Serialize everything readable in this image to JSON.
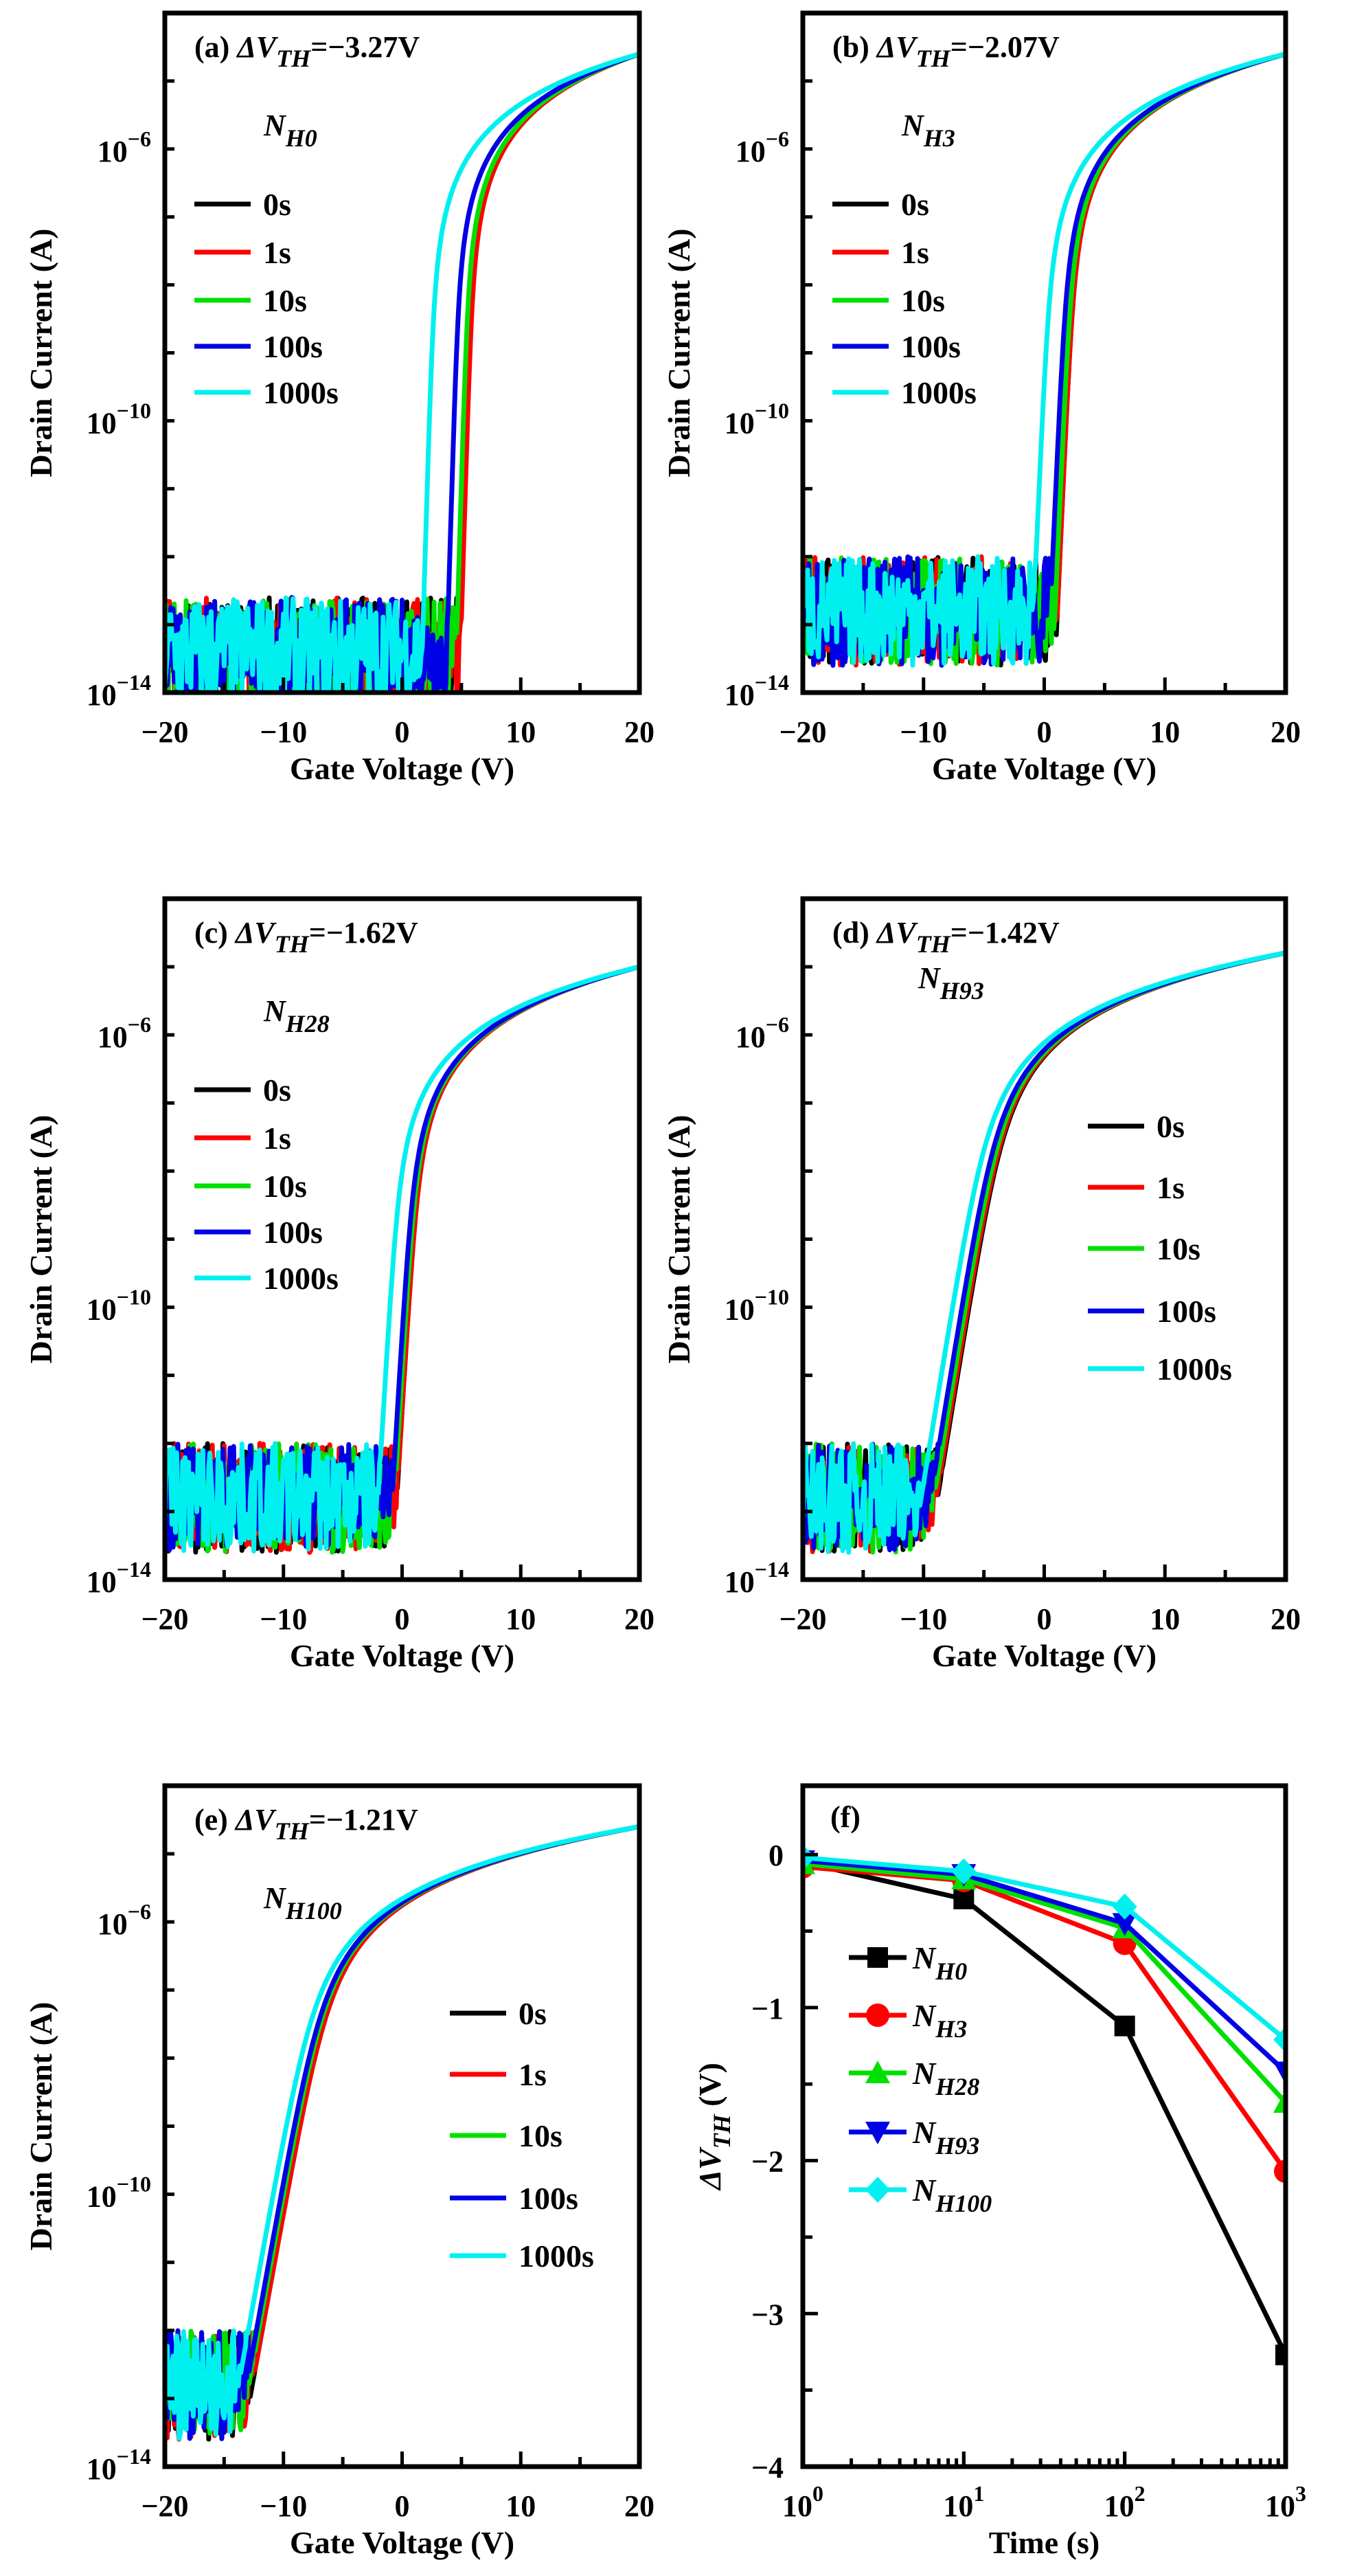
{
  "chart_data": [
    {
      "type": "line",
      "panel": "(a)",
      "delta_label": "ΔV",
      "delta_sub": "TH",
      "delta_value": "=−3.27V",
      "nh_main": "N",
      "nh_sub": "H0",
      "xlabel": "Gate Voltage (V)",
      "ylabel": "Drain Current (A)",
      "xlim": [
        -20,
        20
      ],
      "ylim": [
        1e-14,
        0.0001
      ],
      "yscale": "log",
      "xticks": [
        "−20",
        "−10",
        "0",
        "10",
        "20"
      ],
      "yticks": [
        {
          "base": "10",
          "exp": "−14"
        },
        {
          "base": "10",
          "exp": "−10"
        },
        {
          "base": "10",
          "exp": "−6"
        }
      ],
      "legend_position": "top-left",
      "floor_log": -13.4,
      "imax": 2.5e-05,
      "swing": 0.15,
      "series": [
        {
          "name": "0s",
          "color": "#000000",
          "von": 5.6
        },
        {
          "name": "1s",
          "color": "#ff0000",
          "von": 5.75
        },
        {
          "name": "10s",
          "color": "#00e000",
          "von": 5.4
        },
        {
          "name": "100s",
          "color": "#0000e6",
          "von": 4.6
        },
        {
          "name": "1000s",
          "color": "#00f0f0",
          "von": 2.5
        }
      ]
    },
    {
      "type": "line",
      "panel": "(b)",
      "delta_label": "ΔV",
      "delta_sub": "TH",
      "delta_value": "=−2.07V",
      "nh_main": "N",
      "nh_sub": "H3",
      "xlabel": "Gate Voltage (V)",
      "ylabel": "Drain Current (A)",
      "xlim": [
        -20,
        20
      ],
      "ylim": [
        1e-14,
        0.0001
      ],
      "yscale": "log",
      "xticks": [
        "−20",
        "−10",
        "0",
        "10",
        "20"
      ],
      "yticks": [
        {
          "base": "10",
          "exp": "−14"
        },
        {
          "base": "10",
          "exp": "−10"
        },
        {
          "base": "10",
          "exp": "−6"
        }
      ],
      "legend_position": "top-left",
      "floor_log": -12.8,
      "imax": 2.5e-05,
      "swing": 0.22,
      "series": [
        {
          "name": "0s",
          "color": "#000000",
          "von": 2.2
        },
        {
          "name": "1s",
          "color": "#ff0000",
          "von": 2.2
        },
        {
          "name": "10s",
          "color": "#00e000",
          "von": 2.0
        },
        {
          "name": "100s",
          "color": "#0000e6",
          "von": 1.6
        },
        {
          "name": "1000s",
          "color": "#00f0f0",
          "von": 0.2
        }
      ]
    },
    {
      "type": "line",
      "panel": "(c)",
      "delta_label": "ΔV",
      "delta_sub": "TH",
      "delta_value": "=−1.62V",
      "nh_main": "N",
      "nh_sub": "H28",
      "xlabel": "Gate Voltage (V)",
      "ylabel": "Drain Current (A)",
      "xlim": [
        -20,
        20
      ],
      "ylim": [
        1e-14,
        0.0001
      ],
      "yscale": "log",
      "xticks": [
        "−20",
        "−10",
        "0",
        "10",
        "20"
      ],
      "yticks": [
        {
          "base": "10",
          "exp": "−14"
        },
        {
          "base": "10",
          "exp": "−10"
        },
        {
          "base": "10",
          "exp": "−6"
        }
      ],
      "legend_position": "top-left",
      "floor_log": -12.8,
      "imax": 1e-05,
      "swing": 0.3,
      "series": [
        {
          "name": "0s",
          "color": "#000000",
          "von": 1.0
        },
        {
          "name": "1s",
          "color": "#ff0000",
          "von": 1.0
        },
        {
          "name": "10s",
          "color": "#00e000",
          "von": 0.8
        },
        {
          "name": "100s",
          "color": "#0000e6",
          "von": 0.6
        },
        {
          "name": "1000s",
          "color": "#00f0f0",
          "von": -0.6
        }
      ]
    },
    {
      "type": "line",
      "panel": "(d)",
      "delta_label": "ΔV",
      "delta_sub": "TH",
      "delta_value": "=−1.42V",
      "nh_main": "N",
      "nh_sub": "H93",
      "xlabel": "Gate Voltage (V)",
      "ylabel": "Drain Current (A)",
      "xlim": [
        -20,
        20
      ],
      "ylim": [
        1e-14,
        0.0001
      ],
      "yscale": "log",
      "xticks": [
        "−20",
        "−10",
        "0",
        "10",
        "20"
      ],
      "yticks": [
        {
          "base": "10",
          "exp": "−14"
        },
        {
          "base": "10",
          "exp": "−10"
        },
        {
          "base": "10",
          "exp": "−6"
        }
      ],
      "legend_position": "center-right",
      "floor_log": -12.8,
      "imax": 1.6e-05,
      "swing": 0.8,
      "series": [
        {
          "name": "0s",
          "color": "#000000",
          "von": -4.2
        },
        {
          "name": "1s",
          "color": "#ff0000",
          "von": -4.3
        },
        {
          "name": "10s",
          "color": "#00e000",
          "von": -4.5
        },
        {
          "name": "100s",
          "color": "#0000e6",
          "von": -4.8
        },
        {
          "name": "1000s",
          "color": "#00f0f0",
          "von": -5.6
        }
      ]
    },
    {
      "type": "line",
      "panel": "(e)",
      "delta_label": "ΔV",
      "delta_sub": "TH",
      "delta_value": "=−1.21V",
      "nh_main": "N",
      "nh_sub": "H100",
      "xlabel": "Gate Voltage (V)",
      "ylabel": "Drain Current (A)",
      "xlim": [
        -20,
        20
      ],
      "ylim": [
        1e-14,
        0.0001
      ],
      "yscale": "log",
      "xticks": [
        "−20",
        "−10",
        "0",
        "10",
        "20"
      ],
      "yticks": [
        {
          "base": "10",
          "exp": "−14"
        },
        {
          "base": "10",
          "exp": "−10"
        },
        {
          "base": "10",
          "exp": "−6"
        }
      ],
      "legend_position": "center-right",
      "floor_log": -12.8,
      "imax": 2.5e-05,
      "swing": 0.9,
      "series": [
        {
          "name": "0s",
          "color": "#000000",
          "von": -7.2
        },
        {
          "name": "1s",
          "color": "#ff0000",
          "von": -7.2
        },
        {
          "name": "10s",
          "color": "#00e000",
          "von": -7.5
        },
        {
          "name": "100s",
          "color": "#0000e6",
          "von": -7.7
        },
        {
          "name": "1000s",
          "color": "#00f0f0",
          "von": -8.4
        }
      ]
    },
    {
      "type": "line",
      "panel": "(f)",
      "xlabel": "Time (s)",
      "ylabel_main": "ΔV",
      "ylabel_sub": "TH",
      "ylabel_unit": " (V)",
      "x": [
        1,
        10,
        100,
        1000
      ],
      "xscale": "log",
      "xlim": [
        1,
        1000
      ],
      "ylim": [
        -4,
        0.45
      ],
      "xticks": [
        {
          "base": "10",
          "exp": "0"
        },
        {
          "base": "10",
          "exp": "1"
        },
        {
          "base": "10",
          "exp": "2"
        },
        {
          "base": "10",
          "exp": "3"
        }
      ],
      "yticks": [
        "−4",
        "−3",
        "−2",
        "−1",
        "0"
      ],
      "legend_position": "bottom-left",
      "series": [
        {
          "name_main": "N",
          "name_sub": "H0",
          "color": "#000000",
          "marker": "square",
          "values": [
            -0.05,
            -0.29,
            -1.12,
            -3.27
          ]
        },
        {
          "name_main": "N",
          "name_sub": "H3",
          "color": "#ff0000",
          "marker": "circle",
          "values": [
            -0.08,
            -0.17,
            -0.58,
            -2.07
          ]
        },
        {
          "name_main": "N",
          "name_sub": "H28",
          "color": "#00e000",
          "marker": "triangle-up",
          "values": [
            -0.06,
            -0.16,
            -0.48,
            -1.62
          ]
        },
        {
          "name_main": "N",
          "name_sub": "H93",
          "color": "#0000e6",
          "marker": "triangle-down",
          "values": [
            -0.04,
            -0.13,
            -0.45,
            -1.42
          ]
        },
        {
          "name_main": "N",
          "name_sub": "H100",
          "color": "#00f0f0",
          "marker": "diamond",
          "values": [
            -0.02,
            -0.11,
            -0.34,
            -1.21
          ]
        }
      ]
    }
  ]
}
